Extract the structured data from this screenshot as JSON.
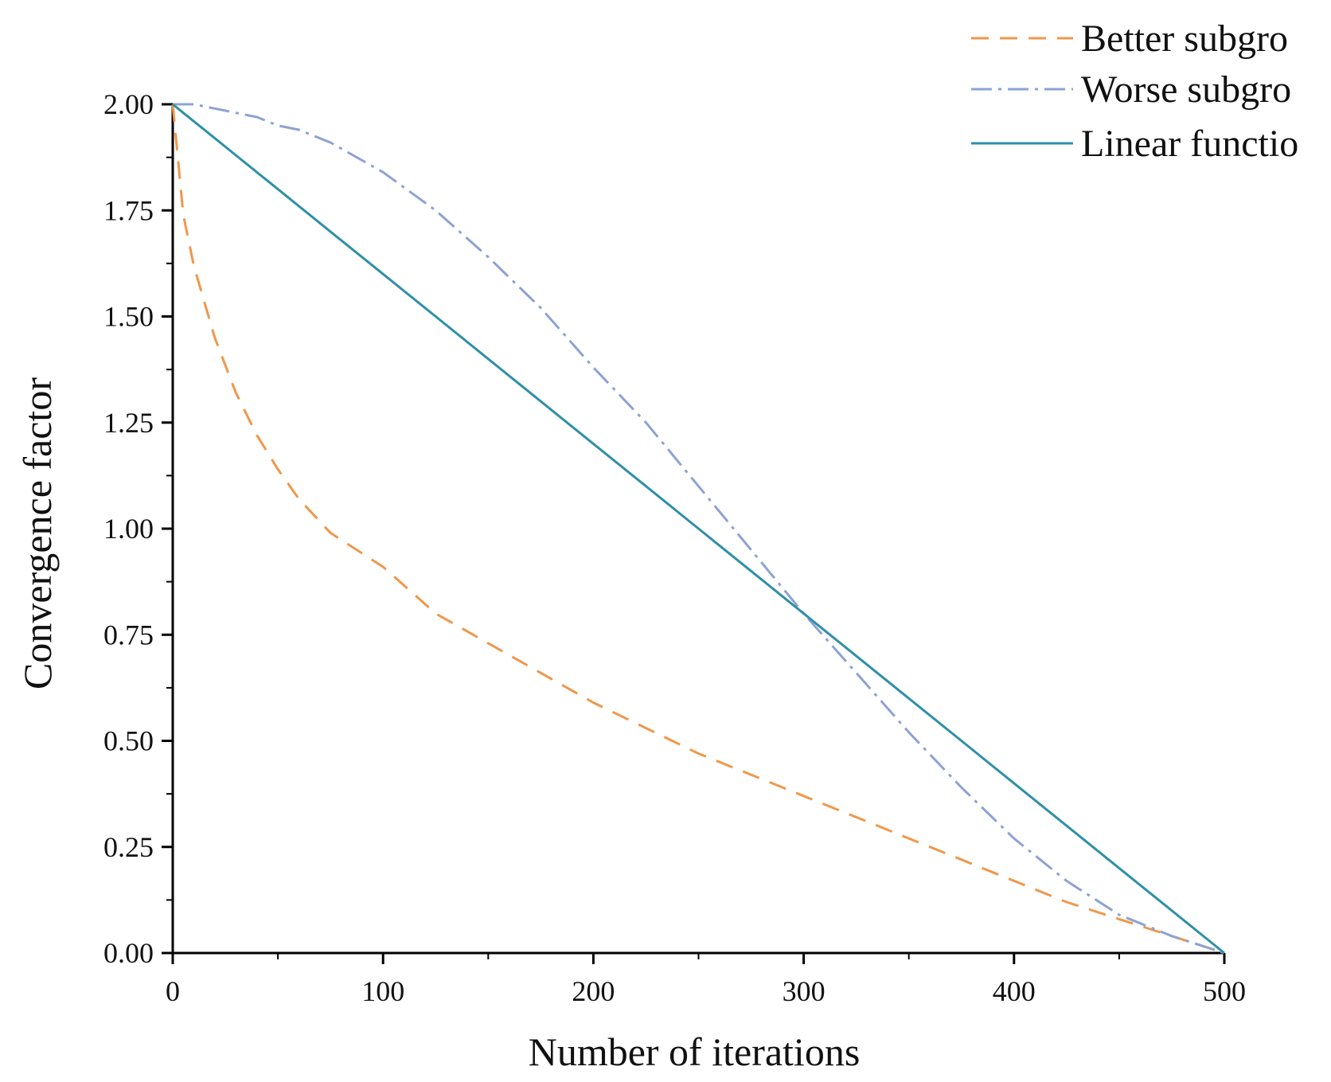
{
  "chart_data": {
    "type": "line",
    "title": "",
    "xlabel": "Number of iterations",
    "ylabel": "Convergence factor",
    "xlim": [
      0,
      500
    ],
    "ylim": [
      0,
      2
    ],
    "xticks": [
      "0",
      "100",
      "200",
      "300",
      "400",
      "500"
    ],
    "yticks": [
      "0.00",
      "0.25",
      "0.50",
      "0.75",
      "1.00",
      "1.25",
      "1.50",
      "1.75",
      "2.00"
    ],
    "grid": false,
    "legend_position": "top-right",
    "x": [
      0,
      5,
      10,
      20,
      30,
      40,
      50,
      60,
      75,
      100,
      125,
      150,
      175,
      200,
      225,
      250,
      275,
      300,
      325,
      350,
      375,
      400,
      425,
      450,
      475,
      500
    ],
    "series": [
      {
        "name": "Better subgroup",
        "style": "dashed",
        "color": "#f0974a",
        "values": [
          2.0,
          1.74,
          1.62,
          1.45,
          1.32,
          1.22,
          1.14,
          1.07,
          0.99,
          0.91,
          0.8,
          0.73,
          0.66,
          0.59,
          0.53,
          0.47,
          0.42,
          0.37,
          0.32,
          0.27,
          0.22,
          0.17,
          0.12,
          0.08,
          0.04,
          0.0
        ]
      },
      {
        "name": "Worse subgroup",
        "style": "dashdot",
        "color": "#8da2d4",
        "values": [
          2.0,
          2.0,
          2.0,
          1.99,
          1.98,
          1.97,
          1.95,
          1.94,
          1.91,
          1.84,
          1.75,
          1.64,
          1.52,
          1.38,
          1.25,
          1.1,
          0.95,
          0.8,
          0.66,
          0.52,
          0.39,
          0.27,
          0.17,
          0.09,
          0.04,
          0.0
        ]
      },
      {
        "name": "Linear function",
        "style": "solid",
        "color": "#2e8fa8",
        "values": [
          2.0,
          1.98,
          1.96,
          1.92,
          1.88,
          1.84,
          1.8,
          1.76,
          1.7,
          1.6,
          1.5,
          1.4,
          1.3,
          1.2,
          1.1,
          1.0,
          0.9,
          0.8,
          0.7,
          0.6,
          0.5,
          0.4,
          0.3,
          0.2,
          0.1,
          0.0
        ]
      }
    ],
    "legend": {
      "entries": [
        "Better subgro",
        "Worse subgro",
        "Linear functio"
      ]
    }
  }
}
